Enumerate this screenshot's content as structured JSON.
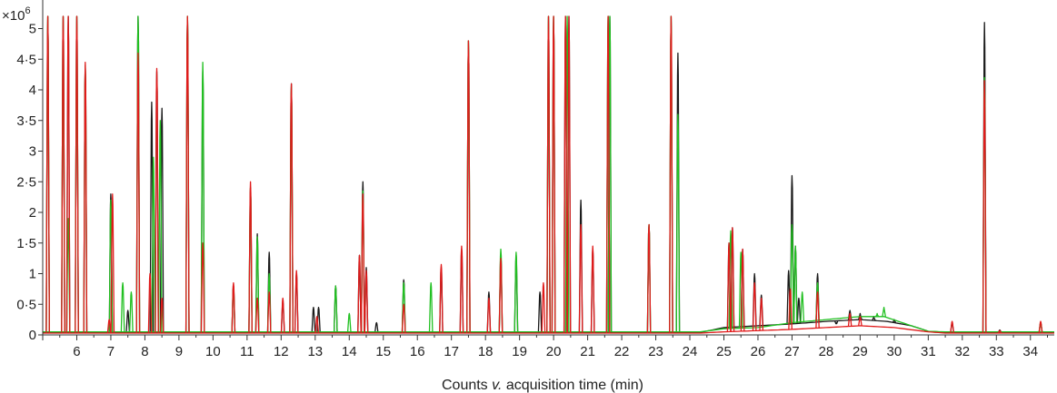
{
  "chart_data": {
    "type": "line",
    "xlabel_prefix": "Counts ",
    "xlabel_italic": "v.",
    "xlabel_suffix": " acquisition time (min)",
    "y_multiplier_base": "×10",
    "y_multiplier_exp": "6",
    "xlim": [
      5,
      34.7
    ],
    "ylim": [
      0,
      5.2
    ],
    "x_ticks": [
      6,
      7,
      8,
      9,
      10,
      11,
      12,
      13,
      14,
      15,
      16,
      17,
      18,
      19,
      20,
      21,
      22,
      23,
      24,
      25,
      26,
      27,
      28,
      29,
      30,
      31,
      32,
      33,
      34
    ],
    "y_ticks": [
      {
        "value": 0,
        "label": "0"
      },
      {
        "value": 0.5,
        "label": "0·5"
      },
      {
        "value": 1,
        "label": "1"
      },
      {
        "value": 1.5,
        "label": "1·5"
      },
      {
        "value": 2,
        "label": "2"
      },
      {
        "value": 2.5,
        "label": "2·5"
      },
      {
        "value": 3,
        "label": "3"
      },
      {
        "value": 3.5,
        "label": "3·5"
      },
      {
        "value": 4,
        "label": "4"
      },
      {
        "value": 4.5,
        "label": "4·5"
      },
      {
        "value": 5,
        "label": "5"
      }
    ],
    "grid": false,
    "legend": "none",
    "series": [
      {
        "color": "#1a1a1a",
        "baseline": 0.04,
        "hump": [
          [
            24.3,
            0.04
          ],
          [
            25,
            0.12
          ],
          [
            26,
            0.15
          ],
          [
            27,
            0.18
          ],
          [
            28,
            0.22
          ],
          [
            29,
            0.25
          ],
          [
            29.8,
            0.22
          ],
          [
            30.5,
            0.15
          ],
          [
            31,
            0.06
          ],
          [
            31.5,
            0.04
          ]
        ],
        "peaks": [
          [
            5.15,
            5.2
          ],
          [
            5.6,
            5.2
          ],
          [
            5.75,
            5.2
          ],
          [
            6.0,
            5.2
          ],
          [
            6.25,
            4.4
          ],
          [
            7.0,
            2.3
          ],
          [
            7.5,
            0.4
          ],
          [
            7.8,
            5.2
          ],
          [
            8.2,
            3.8
          ],
          [
            8.35,
            4.3
          ],
          [
            8.5,
            3.7
          ],
          [
            9.25,
            5.2
          ],
          [
            9.7,
            4.3
          ],
          [
            10.6,
            0.8
          ],
          [
            11.1,
            2.4
          ],
          [
            11.3,
            1.65
          ],
          [
            11.65,
            1.35
          ],
          [
            12.05,
            0.55
          ],
          [
            12.3,
            4.1
          ],
          [
            12.45,
            1.0
          ],
          [
            12.95,
            0.45
          ],
          [
            13.1,
            0.45
          ],
          [
            13.6,
            0.8
          ],
          [
            14.3,
            1.3
          ],
          [
            14.4,
            2.5
          ],
          [
            14.5,
            1.1
          ],
          [
            14.8,
            0.2
          ],
          [
            15.6,
            0.9
          ],
          [
            16.7,
            1.1
          ],
          [
            17.3,
            1.4
          ],
          [
            17.5,
            4.8
          ],
          [
            18.1,
            0.7
          ],
          [
            18.45,
            1.3
          ],
          [
            18.9,
            1.3
          ],
          [
            19.6,
            0.7
          ],
          [
            19.85,
            5.2
          ],
          [
            20.0,
            5.2
          ],
          [
            20.35,
            5.2
          ],
          [
            20.45,
            5.2
          ],
          [
            20.8,
            2.2
          ],
          [
            21.15,
            1.4
          ],
          [
            21.6,
            5.2
          ],
          [
            21.65,
            5.2
          ],
          [
            22.8,
            1.8
          ],
          [
            23.45,
            5.2
          ],
          [
            23.65,
            4.6
          ],
          [
            25.15,
            1.5
          ],
          [
            25.25,
            1.75
          ],
          [
            25.55,
            1.4
          ],
          [
            25.9,
            1.0
          ],
          [
            26.1,
            0.65
          ],
          [
            26.9,
            1.05
          ],
          [
            27.0,
            2.6
          ],
          [
            27.1,
            1.45
          ],
          [
            27.2,
            0.6
          ],
          [
            27.75,
            1.0
          ],
          [
            28.3,
            0.2
          ],
          [
            28.7,
            0.4
          ],
          [
            29.0,
            0.35
          ],
          [
            29.4,
            0.3
          ],
          [
            30.0,
            0.25
          ],
          [
            31.7,
            0.2
          ],
          [
            32.65,
            5.1
          ],
          [
            33.1,
            0.08
          ],
          [
            34.3,
            0.2
          ]
        ]
      },
      {
        "color": "#22c022",
        "baseline": 0.05,
        "hump": [
          [
            24.3,
            0.05
          ],
          [
            25,
            0.1
          ],
          [
            26,
            0.12
          ],
          [
            27,
            0.2
          ],
          [
            28,
            0.25
          ],
          [
            29,
            0.3
          ],
          [
            29.7,
            0.3
          ],
          [
            30.5,
            0.15
          ],
          [
            31,
            0.06
          ],
          [
            31.5,
            0.05
          ]
        ],
        "peaks": [
          [
            5.15,
            5.2
          ],
          [
            5.6,
            5.2
          ],
          [
            5.75,
            1.9
          ],
          [
            6.0,
            5.2
          ],
          [
            6.25,
            4.4
          ],
          [
            7.0,
            2.2
          ],
          [
            7.35,
            0.85
          ],
          [
            7.6,
            0.7
          ],
          [
            7.8,
            5.2
          ],
          [
            8.25,
            2.9
          ],
          [
            8.45,
            3.5
          ],
          [
            9.25,
            5.2
          ],
          [
            9.7,
            4.45
          ],
          [
            10.6,
            0.8
          ],
          [
            11.1,
            2.4
          ],
          [
            11.3,
            1.6
          ],
          [
            11.65,
            1.0
          ],
          [
            12.3,
            4.05
          ],
          [
            13.6,
            0.8
          ],
          [
            14.0,
            0.35
          ],
          [
            14.4,
            2.35
          ],
          [
            15.6,
            0.85
          ],
          [
            16.4,
            0.85
          ],
          [
            17.5,
            4.8
          ],
          [
            18.45,
            1.4
          ],
          [
            18.9,
            1.35
          ],
          [
            19.85,
            5.2
          ],
          [
            20.0,
            5.2
          ],
          [
            20.4,
            5.2
          ],
          [
            21.6,
            5.2
          ],
          [
            21.65,
            5.2
          ],
          [
            22.8,
            1.8
          ],
          [
            23.45,
            5.2
          ],
          [
            23.65,
            3.6
          ],
          [
            25.2,
            1.7
          ],
          [
            25.5,
            1.35
          ],
          [
            27.0,
            1.8
          ],
          [
            27.1,
            1.45
          ],
          [
            27.3,
            0.7
          ],
          [
            27.75,
            0.85
          ],
          [
            29.5,
            0.35
          ],
          [
            29.7,
            0.45
          ],
          [
            32.65,
            4.2
          ],
          [
            34.3,
            0.2
          ]
        ]
      },
      {
        "color": "#e01b1b",
        "baseline": 0.03,
        "hump": [
          [
            24.3,
            0.03
          ],
          [
            25,
            0.05
          ],
          [
            26,
            0.07
          ],
          [
            27,
            0.09
          ],
          [
            28,
            0.12
          ],
          [
            29,
            0.15
          ],
          [
            30,
            0.12
          ],
          [
            31,
            0.05
          ],
          [
            31.5,
            0.03
          ]
        ],
        "peaks": [
          [
            5.15,
            5.2
          ],
          [
            5.6,
            5.2
          ],
          [
            5.75,
            5.2
          ],
          [
            6.0,
            5.2
          ],
          [
            6.25,
            4.45
          ],
          [
            6.95,
            0.25
          ],
          [
            7.05,
            2.3
          ],
          [
            7.8,
            4.6
          ],
          [
            8.15,
            1.0
          ],
          [
            8.35,
            4.35
          ],
          [
            8.5,
            0.6
          ],
          [
            9.25,
            5.2
          ],
          [
            9.7,
            1.5
          ],
          [
            10.6,
            0.85
          ],
          [
            11.1,
            2.5
          ],
          [
            11.3,
            0.6
          ],
          [
            11.65,
            0.7
          ],
          [
            12.05,
            0.6
          ],
          [
            12.3,
            4.1
          ],
          [
            12.45,
            1.05
          ],
          [
            13.05,
            0.3
          ],
          [
            14.3,
            1.3
          ],
          [
            14.4,
            2.3
          ],
          [
            14.5,
            1.05
          ],
          [
            15.6,
            0.5
          ],
          [
            16.7,
            1.15
          ],
          [
            17.3,
            1.45
          ],
          [
            17.5,
            4.8
          ],
          [
            18.1,
            0.6
          ],
          [
            18.45,
            1.25
          ],
          [
            19.7,
            0.85
          ],
          [
            19.85,
            5.2
          ],
          [
            20.0,
            5.2
          ],
          [
            20.35,
            5.2
          ],
          [
            20.45,
            5.2
          ],
          [
            20.8,
            1.8
          ],
          [
            21.15,
            1.45
          ],
          [
            21.6,
            5.2
          ],
          [
            22.8,
            1.8
          ],
          [
            23.45,
            5.2
          ],
          [
            25.15,
            1.5
          ],
          [
            25.25,
            1.75
          ],
          [
            25.55,
            1.4
          ],
          [
            25.9,
            0.85
          ],
          [
            26.1,
            0.6
          ],
          [
            26.95,
            0.75
          ],
          [
            27.75,
            0.7
          ],
          [
            28.7,
            0.35
          ],
          [
            29.0,
            0.3
          ],
          [
            31.7,
            0.22
          ],
          [
            32.65,
            4.15
          ],
          [
            33.1,
            0.07
          ],
          [
            34.3,
            0.22
          ]
        ]
      }
    ]
  }
}
